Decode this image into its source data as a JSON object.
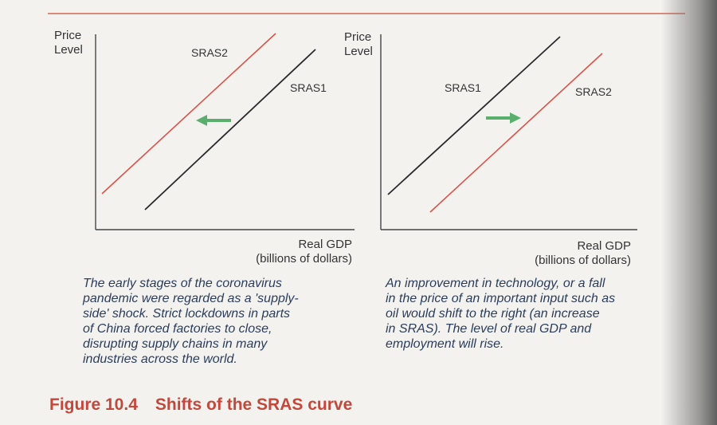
{
  "colors": {
    "sras1": "#2a2a2a",
    "sras2": "#d9544a",
    "arrow": "#5aaf6e",
    "axis": "#444444",
    "caption": "#2a3d5c",
    "title": "#c2483b"
  },
  "left_panel": {
    "ylabel_line1": "Price",
    "ylabel_line2": "Level",
    "xlabel_line1": "Real GDP",
    "xlabel_line2": "(billions of dollars)",
    "sras1_label": "SRAS1",
    "sras2_label": "SRAS2",
    "shift": "left",
    "caption_lines": [
      "The early stages of the coronavirus",
      "pandemic were regarded as a 'supply-",
      "side' shock. Strict lockdowns in parts",
      "of China forced factories to close,",
      "disrupting supply chains in many",
      "industries across the world."
    ]
  },
  "right_panel": {
    "ylabel_line1": "Price",
    "ylabel_line2": "Level",
    "xlabel_line1": "Real GDP",
    "xlabel_line2": "(billions of dollars)",
    "sras1_label": "SRAS1",
    "sras2_label": "SRAS2",
    "shift": "right",
    "caption_lines": [
      "An improvement in technology, or a fall",
      "in the price of an important input such as",
      "oil would shift to the right (an increase",
      "in SRAS). The level of real GDP and",
      "employment will rise."
    ]
  },
  "figure": {
    "number": "Figure 10.4",
    "title": "Shifts of the SRAS curve"
  }
}
